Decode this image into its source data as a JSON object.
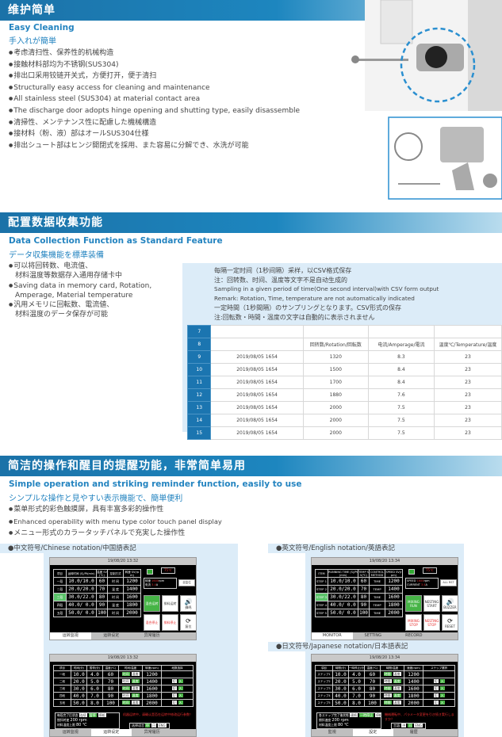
{
  "section1": {
    "title": "维护简单",
    "subtitle_en": "Easy Cleaning",
    "subtitle_jp": "手入れが簡単",
    "bullets": [
      "考虑清扫性、保养性的机械构造",
      "接触材料部均为不锈钢(SUS304)",
      "排出口采用铰链开关式，方便打开，便于清扫",
      "Structurally easy access for cleaning and maintenance",
      "All stainless steel (SUS304) at material contact area",
      "The discharge door adopts hinge opening and shutting type, easily disassemble",
      "清掃性、メンテナンス性に配慮した機械構造",
      "接材料（粉、液）部はオールSUS304仕様",
      "排出シュート部はヒンジ開閉式を採用、また容易に分解でき、水洗が可能"
    ]
  },
  "section2": {
    "title": "配置数据收集功能",
    "subtitle_en": "Data Collection Function as Standard Feature",
    "subtitle_jp": "データ収集機能を標準装備",
    "bullets": [
      "可以将回转数、电流值、",
      "材料温度等数据存入通用存储卡中",
      "Saving data in memory card, Rotation,",
      "Amperage, Material temperature",
      "汎用メモリに回転数、電流値、",
      "材料温度のデータ保存が可能"
    ],
    "notes": [
      "每隔一定时间（1秒间隔）采样，以CSV格式保存",
      "注：回转数、时间、温度等文字不是自动生成的",
      "Sampling in a given period of time(One second interval)with CSV form output",
      "Remark: Rotation, Time, temperature are not automatically indicated",
      "一定時間（1秒間隔）のサンプリングとなります。CSV形式の保存",
      "注:回転数・時間・温度の文字は自動的に表示されません"
    ],
    "table": {
      "row_numbers": [
        "7",
        "8",
        "9",
        "10",
        "11",
        "12",
        "13",
        "14",
        "15"
      ],
      "headers": [
        "",
        "回转数/Rotation/回転数",
        "电流/Amperage/電流",
        "温度℃/Temperature/温度"
      ],
      "rows": [
        [
          "2019/08/05  1654",
          "1320",
          "8.3",
          "23"
        ],
        [
          "2019/08/05  1654",
          "1500",
          "8.4",
          "23"
        ],
        [
          "2019/08/05  1654",
          "1700",
          "8.4",
          "23"
        ],
        [
          "2019/08/05  1654",
          "1880",
          "7.6",
          "23"
        ],
        [
          "2019/08/05  1654",
          "2000",
          "7.5",
          "23"
        ],
        [
          "2019/08/05  1654",
          "2000",
          "7.5",
          "23"
        ],
        [
          "2019/08/05  1654",
          "2000",
          "7.5",
          "23"
        ]
      ]
    }
  },
  "section3": {
    "title": "简洁的操作和醒目的提醒功能，非常简单易用",
    "subtitle_en": "Simple operation and striking reminder function, easily to use",
    "subtitle_jp": "シンプルな操作と見やすい表示機能で、簡単便利",
    "bullets": [
      "菜单形式的彩色触摸屏，具有丰富多彩的操作性",
      "Enhanced operability with menu type color touch panel display",
      "メニュー形式のカラータッチパネルで充実した操作性"
    ],
    "label_cn": "●中文符号/Chinese notation/中国語表記",
    "label_en": "●英文符号/English notation/英語表記",
    "label_jp": "●日文符号/Japanese notation/日本語表記"
  },
  "screens": {
    "cn_monitor": {
      "datetime": "19/08/20 13:32",
      "headers": [
        "项目",
        "运转时间 (S)/Pt(min)",
        "温度 SV(℃)",
        "控制方式",
        "转速 SV(rpm)"
      ],
      "rows": [
        [
          "一段",
          "10.0/10.0",
          "60",
          "时 间",
          "1200"
        ],
        [
          "二段",
          "20.0/20.0",
          "70",
          "温 度",
          "1400"
        ],
        [
          "三段",
          "30.0/22.0",
          "80",
          "时 间",
          "1600"
        ],
        [
          "四段",
          "40.0/ 0.0",
          "90",
          "温 度",
          "1800"
        ],
        [
          "五段",
          "50.0/ 0.0",
          "100",
          "时 间",
          "2000"
        ]
      ],
      "speed_label": "转速",
      "speed": "1600",
      "speed_unit": "rpm",
      "current_label": "电流",
      "current": "3.4",
      "current_unit": "A",
      "temp": "75℃",
      "reset_all": "全复位",
      "buttons": [
        "混合运转",
        "排料运转",
        "蜂鸣",
        "混合停止",
        "排料停止",
        "复位"
      ],
      "tabs": [
        "运转监视",
        "运转设定",
        "异常履历"
      ]
    },
    "en_monitor": {
      "datetime": "19/08/20 13:34",
      "headers": [
        "ITEM",
        "RUNNING TIME (S)/Pt(min)",
        "TEMP SV(℃)",
        "CONTROL METHOD",
        "SPEED SV(rpm)"
      ],
      "rows": [
        [
          "STEP 1",
          "10.0/10.0",
          "60",
          "TIME",
          "1200"
        ],
        [
          "STEP 2",
          "20.0/20.0",
          "70",
          "TEMP",
          "1400"
        ],
        [
          "STEP 3",
          "30.0/22.0",
          "80",
          "TIME",
          "1600"
        ],
        [
          "STEP 4",
          "40.0/ 0.0",
          "90",
          "TEMP",
          "1800"
        ],
        [
          "STEP 5",
          "50.0/ 0.0",
          "100",
          "TIME",
          "2000"
        ]
      ],
      "speed_label": "SPEED",
      "speed": "1600",
      "speed_unit": "rpm",
      "current_label": "CURRENT",
      "current": "3.4",
      "current_unit": "A",
      "temp": "75℃",
      "reset_all": "ALL RST",
      "buttons": [
        "MIXING RUN",
        "NESTING START",
        "BUZZER",
        "MIXING STOP",
        "NESTING STOP",
        "RESET"
      ],
      "tabs": [
        "MONITOR",
        "SETTING",
        "RECORD"
      ]
    },
    "cn_setting": {
      "datetime": "19/08/20 13:32",
      "headers": [
        "项目",
        "时间(分)",
        "暂停(分)",
        "温度(℃)",
        "时间/温度",
        "转速(rpm)",
        "段数选择"
      ],
      "rows": [
        [
          "一段",
          "10.0",
          "4.0",
          "60",
          "1200"
        ],
        [
          "二段",
          "20.0",
          "5.0",
          "70",
          "1400"
        ],
        [
          "三段",
          "30.0",
          "6.0",
          "80",
          "1600"
        ],
        [
          "四段",
          "40.0",
          "7.0",
          "90",
          "1800"
        ],
        [
          "五段",
          "50.0",
          "8.0",
          "100",
          "2000"
        ]
      ],
      "toggle": [
        "时间",
        "温度"
      ],
      "select": [
        "切",
        "入"
      ],
      "end_state_label": "每段完了后状态",
      "end_state": [
        "连续",
        "暂停",
        "停机"
      ],
      "mix_speed_label": "搅拌转速",
      "mix_speed": "200 rpm",
      "temp_limit_label": "材料温度上限",
      "temp_limit": "80 ℃",
      "warning": "机器运转中，请确认是否在运转中修改运行参数！",
      "lang_label": "选择语言",
      "langs": [
        "中",
        "日",
        "ENG"
      ],
      "tabs": [
        "运转监视",
        "运转设定",
        "异常履历"
      ]
    },
    "jp_setting": {
      "datetime": "19/08/20 13:34",
      "headers": [
        "項目",
        "時間(分)",
        "一時停止(分)",
        "温度(℃)",
        "時間/温度",
        "速度(rpm)",
        "ステップ選択"
      ],
      "rows": [
        [
          "ステップ1",
          "10.0",
          "4.0",
          "60",
          "1200"
        ],
        [
          "ステップ2",
          "20.0",
          "5.0",
          "70",
          "1400"
        ],
        [
          "ステップ3",
          "30.0",
          "6.0",
          "80",
          "1600"
        ],
        [
          "ステップ4",
          "40.0",
          "7.0",
          "90",
          "1800"
        ],
        [
          "ステップ5",
          "50.0",
          "8.0",
          "100",
          "2000"
        ]
      ],
      "toggle": [
        "時間",
        "温度"
      ],
      "select": [
        "切",
        "入"
      ],
      "end_state_label": "各ステップ完了後状態",
      "end_state": [
        "連続",
        "一時停止",
        "停機"
      ],
      "mix_speed_label": "攪拌速度",
      "mix_speed": "200 rpm",
      "temp_limit_label": "材料温度上限",
      "temp_limit": "80 ℃",
      "warning": "機械運転中、パラメータ変更を引き続き実行しますか？",
      "lang_label": "言語:",
      "langs": [
        "中",
        "日",
        "ENG"
      ],
      "tabs": [
        "監視",
        "設定",
        "履歴"
      ]
    }
  },
  "colors": {
    "accent": "#2484c0",
    "header": "#1b72a8",
    "panel_bg": "#dcecf8",
    "run_green": "#46b446",
    "stop_red": "#e62d2d"
  }
}
